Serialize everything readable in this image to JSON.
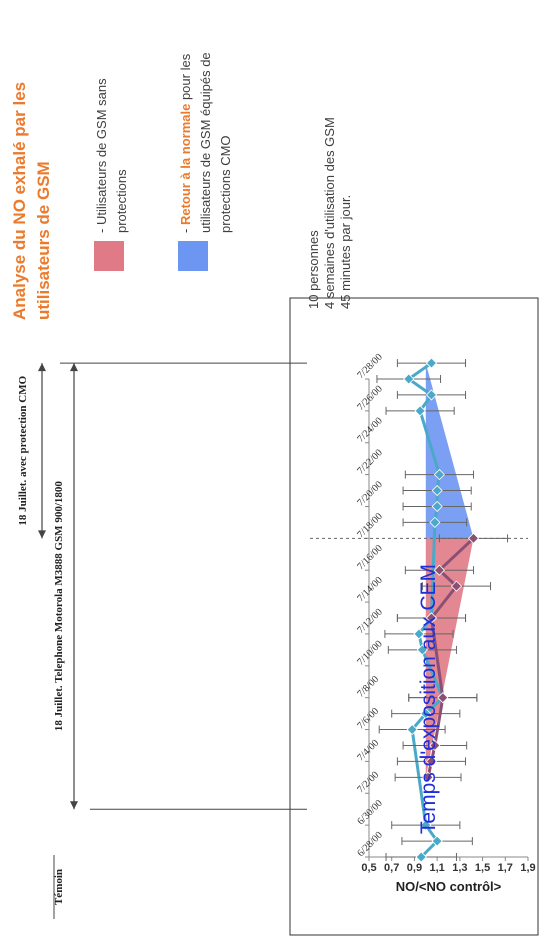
{
  "chart_data": {
    "type": "line",
    "title": "Temps d'exposition aux CEM",
    "ylabel": "NO/<NO contrôl>",
    "ylim": [
      0.5,
      1.9
    ],
    "yticks": [
      "0,5",
      "0,7",
      "0,9",
      "1,1",
      "1,3",
      "1,5",
      "1,7",
      "1,9"
    ],
    "xticks": [
      "6/28/00",
      "6/30/00",
      "7/2/00",
      "7/4/00",
      "7/6/00",
      "7/8/00",
      "7/10/00",
      "7/12/00",
      "7/14/00",
      "7/16/00",
      "7/18/00",
      "7/20/00",
      "7/22/00",
      "7/24/00",
      "7/26/00",
      "7/28/00"
    ],
    "series": [
      {
        "color": "#4aa9c9",
        "points": [
          {
            "x": "6/28/00",
            "y": 0.96,
            "err": 0.31
          },
          {
            "x": "6/29/00",
            "y": 1.1,
            "err": 0.31
          },
          {
            "x": "6/30/00",
            "y": 1.0,
            "err": 0.3
          },
          {
            "x": "7/6/00",
            "y": 0.88,
            "err": 0.29
          },
          {
            "x": "7/7/00",
            "y": 1.0,
            "err": 0.3
          },
          {
            "x": "7/8/00",
            "y": 1.15,
            "err": 0.3
          },
          {
            "x": "7/11/00",
            "y": 0.97,
            "err": 0.3
          },
          {
            "x": "7/12/00",
            "y": 0.94,
            "err": 0.3
          },
          {
            "x": "7/13/00",
            "y": 1.05,
            "err": 0.3
          },
          {
            "x": "7/19/00",
            "y": 1.08,
            "err": 0.28
          },
          {
            "x": "7/20/00",
            "y": 1.1,
            "err": 0.3
          },
          {
            "x": "7/21/00",
            "y": 1.1,
            "err": 0.3
          },
          {
            "x": "7/22/00",
            "y": 1.12,
            "err": 0.3
          },
          {
            "x": "7/26/00",
            "y": 0.95,
            "err": 0.3
          },
          {
            "x": "7/27/00",
            "y": 1.05,
            "err": 0.3
          },
          {
            "x": "7/28/00",
            "y": 0.85,
            "err": 0.28
          },
          {
            "x": "7/29/00",
            "y": 1.05,
            "err": 0.3
          }
        ]
      },
      {
        "color": "#8b4f74",
        "points": [
          {
            "x": "7/3/00",
            "y": 1.02,
            "err": 0.29
          },
          {
            "x": "7/4/00",
            "y": 1.05,
            "err": 0.3
          },
          {
            "x": "7/5/00",
            "y": 1.08,
            "err": 0.28
          },
          {
            "x": "7/8/00",
            "y": 1.15,
            "err": 0.3
          },
          {
            "x": "7/13/00",
            "y": 1.05,
            "err": 0.3
          },
          {
            "x": "7/15/00",
            "y": 1.27,
            "err": 0.3
          },
          {
            "x": "7/16/00",
            "y": 1.12,
            "err": 0.3
          },
          {
            "x": "7/18/00",
            "y": 1.42,
            "err": 0.3
          }
        ]
      }
    ],
    "regions": [
      {
        "legend": "- Utilisateurs de GSM sans protections",
        "color": "#e07a86"
      },
      {
        "legend": "- Retour à la normale pour les utilisateurs de GSM équipés de protections CMO",
        "color": "#6d95f2"
      }
    ],
    "annotations": {
      "temoin": "Témoin",
      "period1": "18 Juillet. Telephone Motorola M3888 GSM 900/1800",
      "period2": "18 Juillet. avec protection CMO"
    }
  },
  "legend": {
    "title": "Analyse du NO exhalé par les utilisateurs de GSM",
    "item1": "- Utilisateurs de GSM sans protections",
    "item2_highlight": "Retour à la normale",
    "item2_prefix": "- ",
    "item2_rest": " pour les utilisateurs de GSM équipés de protections CMO"
  },
  "info": {
    "line1": "10 personnes",
    "line2": "4 semaines d'utilisation des GSM",
    "line3": "45 minutes par jour."
  }
}
